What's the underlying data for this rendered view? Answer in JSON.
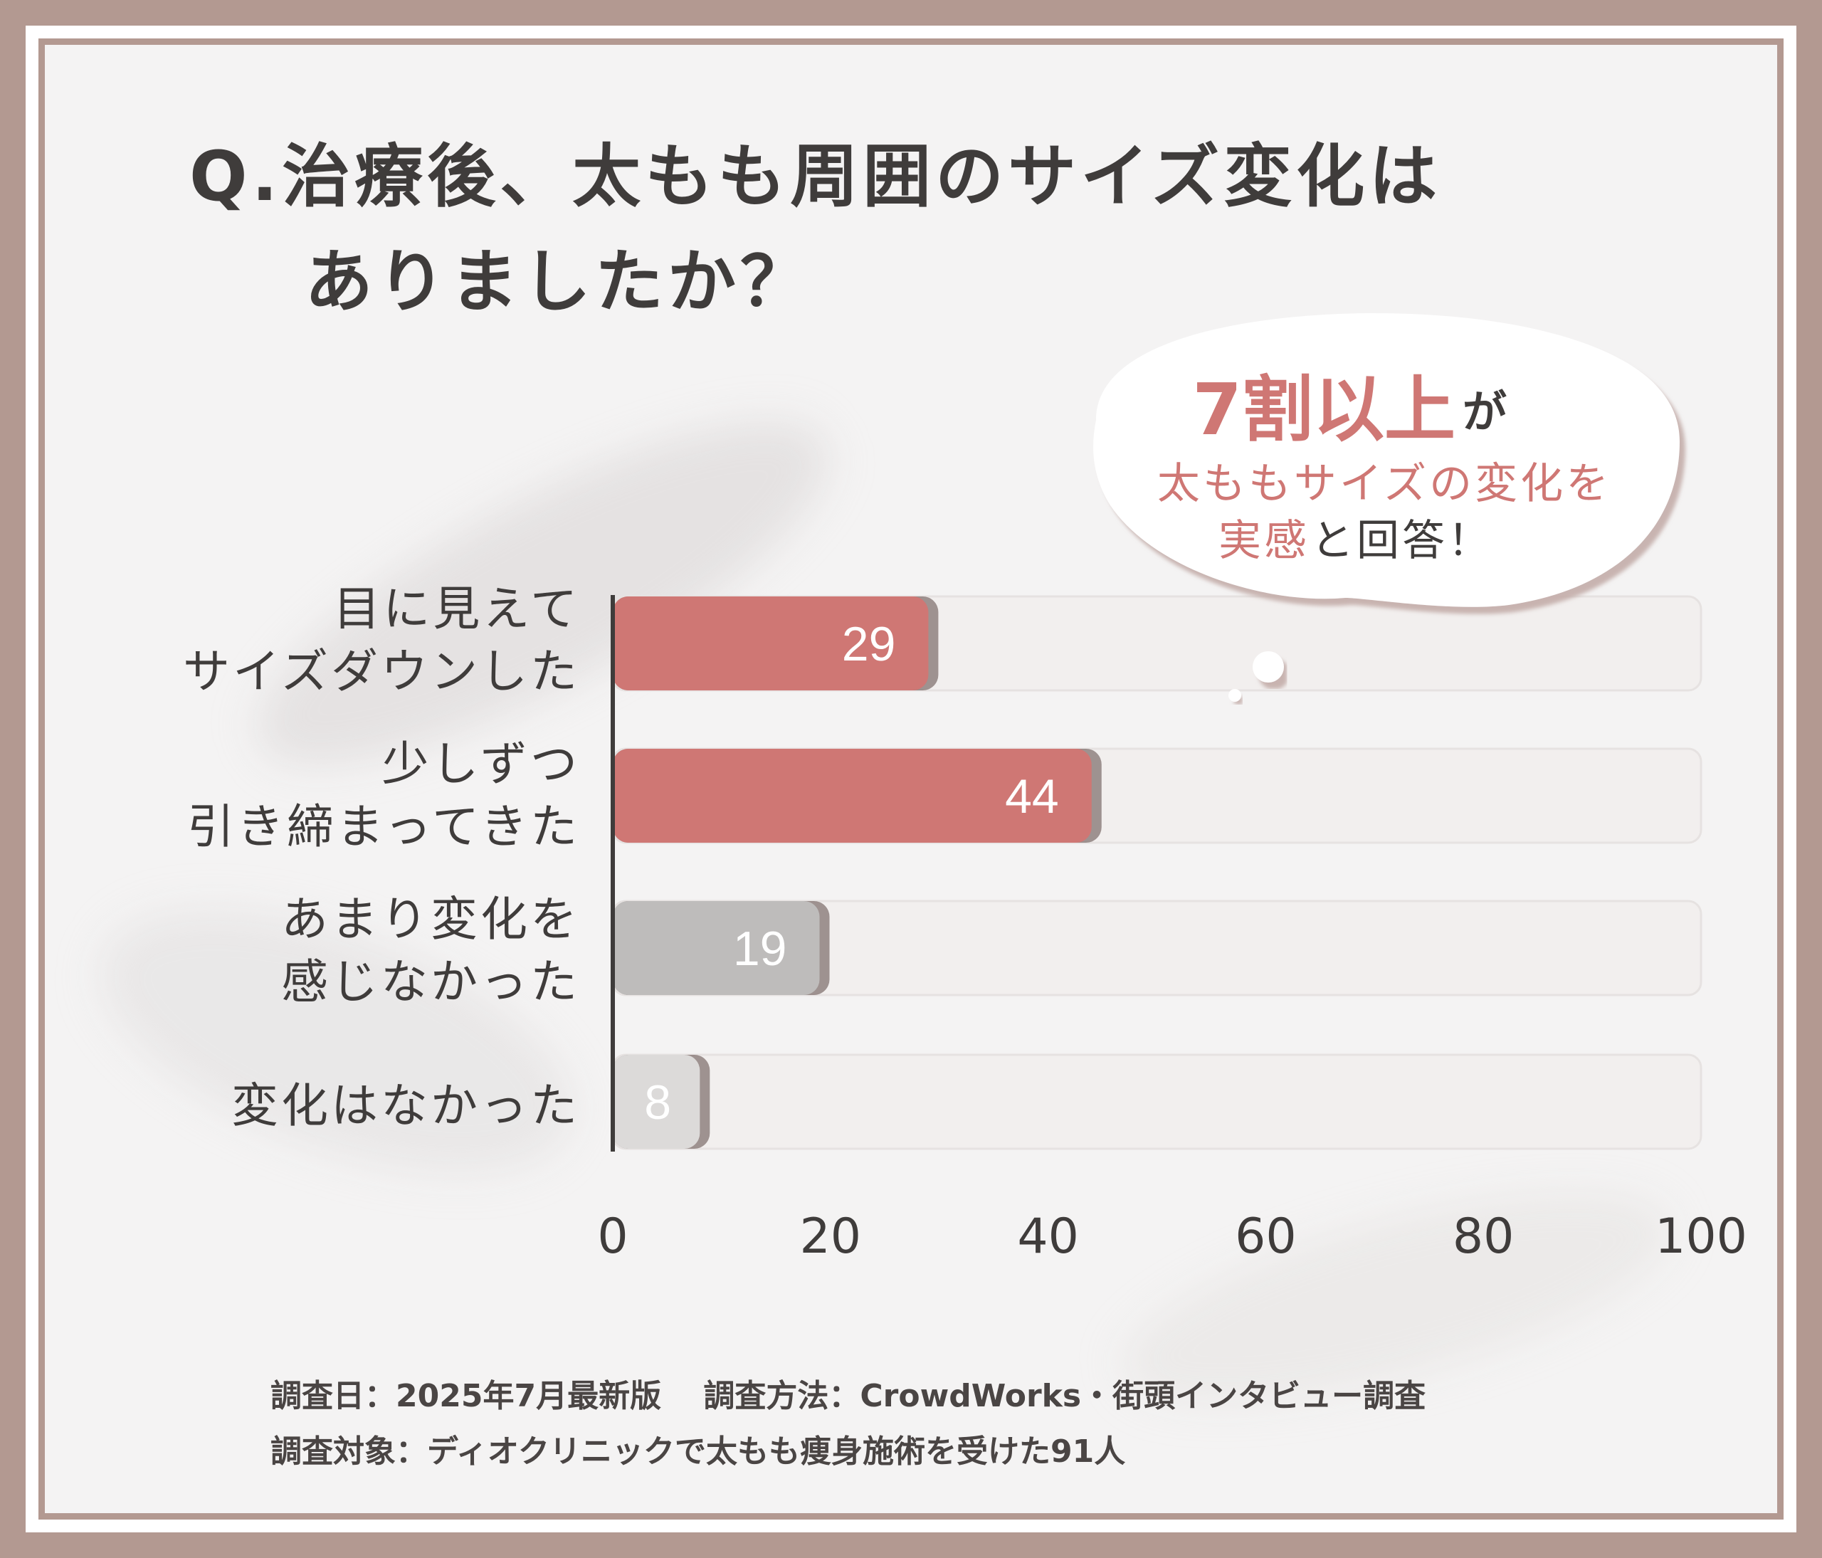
{
  "title": {
    "line1": "Q.治療後、太もも周囲のサイズ変化は",
    "line2": "ありましたか？"
  },
  "callout": {
    "big": "7割以上",
    "big_suffix": "が",
    "line2": "太ももサイズの変化を",
    "line3_accent": "実感",
    "line3_rest": "と回答！"
  },
  "chart_data": {
    "type": "bar",
    "orientation": "horizontal",
    "categories": [
      "目に見えて\nサイズダウンした",
      "少しずつ\n引き締まってきた",
      "あまり変化を\n感じなかった",
      "変化はなかった"
    ],
    "values": [
      29,
      44,
      19,
      8
    ],
    "xlim": [
      0,
      100
    ],
    "xticks": [
      0,
      20,
      40,
      60,
      80,
      100
    ],
    "bar_colors": [
      "#cf7774",
      "#cf7774",
      "#bebcbb",
      "#dcdad9"
    ],
    "track_color": "#f2efee",
    "value_labels": [
      "29",
      "44",
      "19",
      "8"
    ]
  },
  "labels": {
    "cat1_l1": "目に見えて",
    "cat1_l2": "サイズダウンした",
    "cat2_l1": "少しずつ",
    "cat2_l2": "引き締まってきた",
    "cat3_l1": "あまり変化を",
    "cat3_l2": "感じなかった",
    "cat4_l1": "変化はなかった"
  },
  "footer": {
    "line1": "調査日：2025年7月最新版　 調査方法：CrowdWorks・街頭インタビュー調査",
    "line2": "調査対象：ディオクリニックで太もも痩身施術を受けた91人"
  },
  "colors": {
    "accent": "#cf7774",
    "frame": "#b39991",
    "text": "#3f3c3b"
  }
}
